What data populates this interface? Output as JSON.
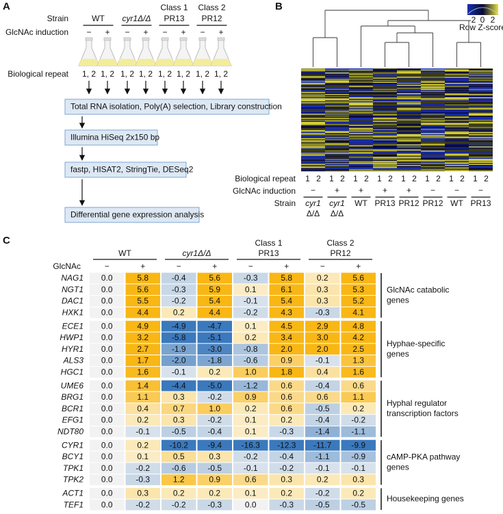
{
  "panel_a": {
    "label": "A",
    "strain_label": "Strain",
    "strain_groups": [
      {
        "name": "WT"
      },
      {
        "name": "cyr1Δ/Δ"
      },
      {
        "class": "Class 1",
        "name": "PR13"
      },
      {
        "class": "Class 2",
        "name": "PR12"
      }
    ],
    "induction_label": "GlcNAc induction",
    "induction_signs": [
      "−",
      "+"
    ],
    "repeat_label": "Biological repeat",
    "repeat_text": "1, 2",
    "steps": [
      "Total RNA isolation, Poly(A) selection, Library construction",
      "Illumina HiSeq 2x150 bp",
      "fastp, HISAT2, StringTie, DESeq2",
      "Differential gene expression analysis"
    ]
  },
  "panel_b": {
    "label": "B",
    "key_ticks": [
      -2,
      0,
      2
    ],
    "key_title": "Row Z-score",
    "repeat_label": "Biological repeat",
    "repeats": [
      "1",
      "2"
    ],
    "induction_label": "GlcNAc induction",
    "induction": [
      "−",
      "+",
      "+",
      "+",
      "+",
      "−",
      "−",
      "−"
    ],
    "strain_label": "Strain",
    "strains": [
      [
        "cyr1",
        "Δ/Δ"
      ],
      [
        "cyr1",
        "Δ/Δ"
      ],
      [
        "WT"
      ],
      [
        "PR13"
      ],
      [
        "PR12"
      ],
      [
        "PR12"
      ],
      [
        "WT"
      ],
      [
        "PR13"
      ]
    ]
  },
  "panel_c": {
    "label": "C",
    "glcnac_label": "GlcNAc",
    "gene_groups": [
      {
        "label_lines": [
          "GlcNAc catabolic",
          "genes"
        ],
        "rows": [
          {
            "gene": "NAG1",
            "values": [
              "0.0",
              "5.8",
              "-0.4",
              "5.6",
              "-0.3",
              "5.8",
              "0.2",
              "5.6"
            ]
          },
          {
            "gene": "NGT1",
            "values": [
              "0.0",
              "5.6",
              "-0.3",
              "5.9",
              "0.1",
              "6.1",
              "0.3",
              "5.3"
            ]
          },
          {
            "gene": "DAC1",
            "values": [
              "0.0",
              "5.5",
              "-0.2",
              "5.4",
              "-0.1",
              "5.4",
              "0.3",
              "5.2"
            ]
          },
          {
            "gene": "HXK1",
            "values": [
              "0.0",
              "4.4",
              "0.2",
              "4.4",
              "-0.2",
              "4.3",
              "-0.3",
              "4.1"
            ]
          }
        ]
      },
      {
        "label_lines": [
          "Hyphae-specific",
          "genes"
        ],
        "rows": [
          {
            "gene": "ECE1",
            "values": [
              "0.0",
              "4.9",
              "-4.9",
              "-4.7",
              "0.1",
              "4.5",
              "2.9",
              "4.8"
            ]
          },
          {
            "gene": "HWP1",
            "values": [
              "0.0",
              "3.2",
              "-5.8",
              "-5.1",
              "0.2",
              "3.4",
              "3.0",
              "4.2"
            ]
          },
          {
            "gene": "HYR1",
            "values": [
              "0.0",
              "2.7",
              "-1.9",
              "-3.0",
              "-0.8",
              "2.0",
              "2.0",
              "2.5"
            ]
          },
          {
            "gene": "ALS3",
            "values": [
              "0.0",
              "1.7",
              "-2.0",
              "-1.8",
              "-0.6",
              "0.9",
              "-0.1",
              "1.3"
            ]
          },
          {
            "gene": "HGC1",
            "values": [
              "0.0",
              "1.6",
              "-0.1",
              "0.2",
              "1.0",
              "1.8",
              "0.4",
              "1.6"
            ]
          }
        ]
      },
      {
        "label_lines": [
          "Hyphal regulator",
          "transcription factors"
        ],
        "rows": [
          {
            "gene": "UME6",
            "values": [
              "0.0",
              "1.4",
              "-4.4",
              "-5.0",
              "-1.2",
              "0.6",
              "-0.4",
              "0.6"
            ]
          },
          {
            "gene": "BRG1",
            "values": [
              "0.0",
              "1.1",
              "0.3",
              "-0.2",
              "0.9",
              "0.6",
              "0.6",
              "1.1"
            ]
          },
          {
            "gene": "BCR1",
            "values": [
              "0.0",
              "0.4",
              "0.7",
              "1.0",
              "0.2",
              "0.6",
              "-0.5",
              "0.2"
            ]
          },
          {
            "gene": "EFG1",
            "values": [
              "0.0",
              "0.2",
              "0.3",
              "-0.2",
              "0.1",
              "0.2",
              "-0.4",
              "-0.2"
            ]
          },
          {
            "gene": "NDT80",
            "values": [
              "0.0",
              "-0.1",
              "-0.5",
              "-0.4",
              "0.1",
              "-0.3",
              "-1.4",
              "-1.1"
            ]
          }
        ]
      },
      {
        "label_lines": [
          "cAMP-PKA pathway",
          "genes"
        ],
        "rows": [
          {
            "gene": "CYR1",
            "values": [
              "0.0",
              "0.2",
              "-10.2",
              "-9.4",
              "-16.3",
              "-12.3",
              "-11.7",
              "-9.9"
            ]
          },
          {
            "gene": "BCY1",
            "values": [
              "0.0",
              "0.1",
              "0.5",
              "0.3",
              "-0.2",
              "-0.4",
              "-1.1",
              "-0.9"
            ]
          },
          {
            "gene": "TPK1",
            "values": [
              "0.0",
              "-0.2",
              "-0.6",
              "-0.5",
              "-0.1",
              "-0.2",
              "-0.1",
              "-0.1"
            ]
          },
          {
            "gene": "TPK2",
            "values": [
              "0.0",
              "-0.3",
              "1.2",
              "0.9",
              "0.6",
              "0.3",
              "0.2",
              "0.3"
            ]
          }
        ]
      },
      {
        "label_lines": [
          "Housekeeping genes"
        ],
        "rows": [
          {
            "gene": "ACT1",
            "values": [
              "0.0",
              "0.3",
              "0.2",
              "0.2",
              "0.1",
              "0.2",
              "-0.2",
              "0.2"
            ]
          },
          {
            "gene": "TEF1",
            "values": [
              "0.0",
              "-0.2",
              "-0.2",
              "-0.3",
              "0.0",
              "-0.3",
              "-0.5",
              "-0.5"
            ]
          }
        ]
      }
    ]
  }
}
